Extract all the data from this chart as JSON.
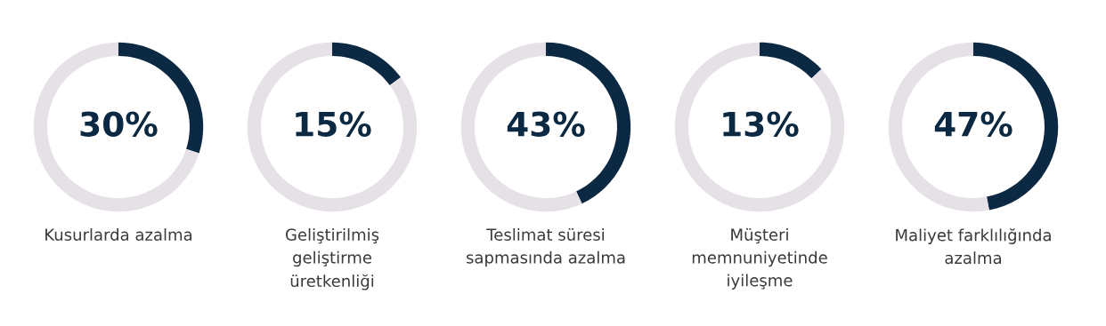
{
  "chart_data": [
    {
      "type": "donut",
      "title": "Kusurlarda azalma",
      "categories": [
        null,
        null
      ],
      "values": [
        30,
        70
      ],
      "colors": [
        "#0b2942",
        "#e5e1e6"
      ],
      "value_labels": [
        "30%",
        null
      ]
    },
    {
      "type": "donut",
      "title": "Geliştirilmiş\ngeliştirme\nüretkenliği",
      "categories": [
        null,
        null
      ],
      "values": [
        15,
        85
      ],
      "colors": [
        "#0b2942",
        "#e5e1e6"
      ],
      "value_labels": [
        "15%",
        null
      ]
    },
    {
      "type": "donut",
      "title": "Teslimat süresi\nsapmasında azalma",
      "categories": [
        null,
        null
      ],
      "values": [
        43,
        57
      ],
      "colors": [
        "#0b2942",
        "#e5e1e6"
      ],
      "value_labels": [
        "43%",
        null
      ]
    },
    {
      "type": "donut",
      "title": "Müşteri\nmemnuniyetinde\niyileşme",
      "categories": [
        null,
        null
      ],
      "values": [
        13,
        87
      ],
      "colors": [
        "#0b2942",
        "#e5e1e6"
      ],
      "value_labels": [
        "13%",
        null
      ]
    },
    {
      "type": "donut",
      "title": "Maliyet farklılığında\nazalma",
      "categories": [
        null,
        null
      ],
      "values": [
        47,
        53
      ],
      "colors": [
        "#0b2942",
        "#e5e1e6"
      ],
      "value_labels": [
        "47%",
        null
      ]
    }
  ]
}
